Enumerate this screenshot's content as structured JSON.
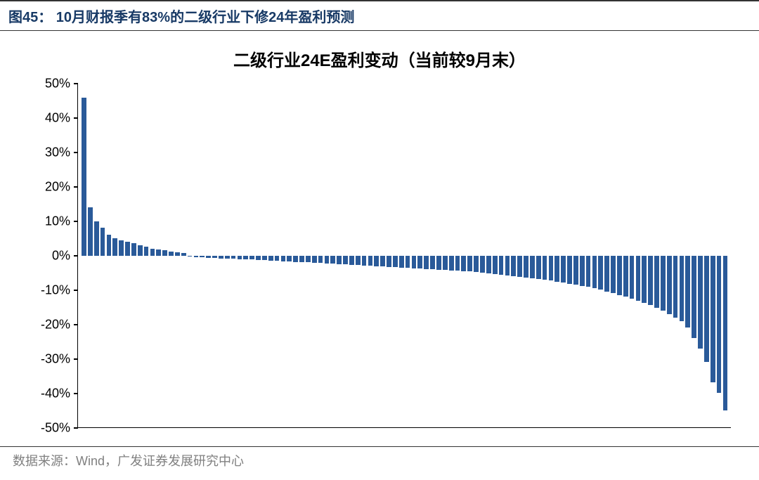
{
  "header": {
    "title": "图45： 10月财报季有83%的二级行业下修24年盈利预测"
  },
  "chart": {
    "type": "bar",
    "title": "二级行业24E盈利变动（当前较9月末）",
    "title_fontsize": 24,
    "title_color": "#000000",
    "bar_color": "#2a5a99",
    "background_color": "#ffffff",
    "axis_color": "#000000",
    "ylim": [
      -50,
      50
    ],
    "ytick_step": 10,
    "yticks": [
      {
        "value": 50,
        "label": "50%"
      },
      {
        "value": 40,
        "label": "40%"
      },
      {
        "value": 30,
        "label": "30%"
      },
      {
        "value": 20,
        "label": "20%"
      },
      {
        "value": 10,
        "label": "10%"
      },
      {
        "value": 0,
        "label": "0%"
      },
      {
        "value": -10,
        "label": "-10%"
      },
      {
        "value": -20,
        "label": "-20%"
      },
      {
        "value": -30,
        "label": "-30%"
      },
      {
        "value": -40,
        "label": "-40%"
      },
      {
        "value": -50,
        "label": "-50%"
      }
    ],
    "label_fontsize": 18,
    "values": [
      46,
      14,
      10,
      8,
      6,
      5,
      4.5,
      4,
      3.5,
      3,
      2.5,
      2,
      1.8,
      1.5,
      1.2,
      1,
      0.8,
      -0.3,
      -0.5,
      -0.6,
      -0.7,
      -0.8,
      -0.9,
      -1,
      -1,
      -1.1,
      -1.2,
      -1.2,
      -1.3,
      -1.4,
      -1.5,
      -1.6,
      -1.7,
      -1.8,
      -1.9,
      -2,
      -2,
      -2.1,
      -2.2,
      -2.3,
      -2.4,
      -2.5,
      -2.6,
      -2.7,
      -2.8,
      -2.9,
      -3,
      -3.1,
      -3.2,
      -3.3,
      -3.4,
      -3.5,
      -3.6,
      -3.7,
      -3.8,
      -3.9,
      -4,
      -4.1,
      -4.2,
      -4.3,
      -4.4,
      -4.5,
      -4.6,
      -4.8,
      -5,
      -5.2,
      -5.4,
      -5.6,
      -5.8,
      -6,
      -6.2,
      -6.4,
      -6.6,
      -6.8,
      -7,
      -7.3,
      -7.6,
      -7.9,
      -8.2,
      -8.5,
      -8.8,
      -9.2,
      -9.6,
      -10,
      -10.5,
      -11,
      -11.5,
      -12,
      -12.6,
      -13.2,
      -13.8,
      -14.5,
      -15.2,
      -16,
      -17,
      -18,
      -19.2,
      -21,
      -24,
      -27,
      -31,
      -37,
      -40,
      -45
    ]
  },
  "footer": {
    "text": "数据来源：Wind，广发证券发展研究中心"
  }
}
